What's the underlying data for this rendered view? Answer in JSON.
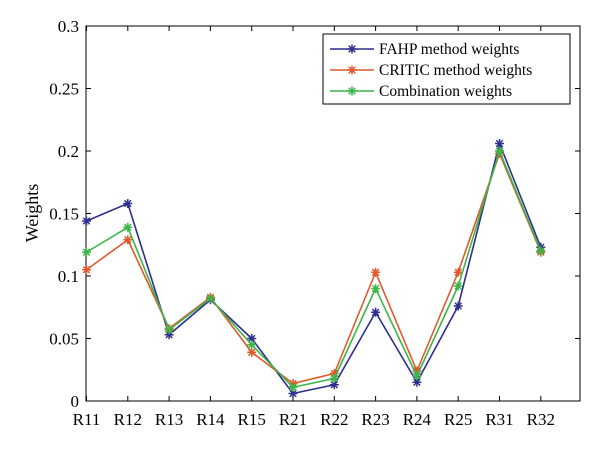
{
  "chart_data": {
    "type": "line",
    "categories": [
      "R11",
      "R12",
      "R13",
      "R14",
      "R15",
      "R21",
      "R22",
      "R23",
      "R24",
      "R25",
      "R31",
      "R32"
    ],
    "ylabel": "Weights",
    "ylim": [
      0,
      0.3
    ],
    "yticks": [
      0,
      0.05,
      0.1,
      0.15,
      0.2,
      0.25,
      0.3
    ],
    "ytick_labels": [
      "0",
      "0.05",
      "0.1",
      "0.15",
      "0.2",
      "0.25",
      "0.3"
    ],
    "grid": false,
    "legend_position": "top-right",
    "marker": "asterisk",
    "series": [
      {
        "name": "FAHP method weights",
        "color": "#2e2e8f",
        "values": [
          0.144,
          0.158,
          0.053,
          0.081,
          0.05,
          0.006,
          0.013,
          0.071,
          0.015,
          0.076,
          0.206,
          0.123
        ]
      },
      {
        "name": "CRITIC method weights",
        "color": "#e2582a",
        "values": [
          0.105,
          0.129,
          0.058,
          0.083,
          0.039,
          0.014,
          0.022,
          0.103,
          0.024,
          0.103,
          0.198,
          0.119
        ]
      },
      {
        "name": "Combination weights",
        "color": "#3cb54a",
        "values": [
          0.119,
          0.139,
          0.057,
          0.082,
          0.045,
          0.011,
          0.018,
          0.09,
          0.02,
          0.092,
          0.2,
          0.12
        ]
      }
    ]
  }
}
